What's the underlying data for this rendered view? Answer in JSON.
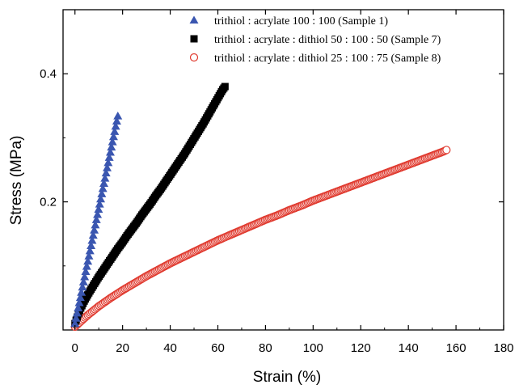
{
  "chart_data": {
    "type": "scatter",
    "title": "",
    "xlabel": "Strain (%)",
    "ylabel": "Stress (MPa)",
    "xlim": [
      -5,
      180
    ],
    "ylim": [
      0,
      0.5
    ],
    "x_ticks": [
      0,
      20,
      40,
      60,
      80,
      100,
      120,
      140,
      160,
      180
    ],
    "x_tick_labels": [
      "0",
      "20",
      "40",
      "60",
      "80",
      "100",
      "120",
      "140",
      "160",
      "180"
    ],
    "y_ticks": [
      0.2,
      0.4
    ],
    "y_tick_labels": [
      "0.2",
      "0.4"
    ],
    "grid": false,
    "legend_position": "top-right",
    "series": [
      {
        "name": "trithiol : acrylate 100 : 100 (Sample 1)",
        "marker": "triangle",
        "color": "#3a56b0",
        "x": [
          0,
          1,
          2,
          3,
          4,
          5,
          6,
          7,
          8,
          9,
          10,
          11,
          12,
          13,
          14,
          15,
          16,
          17,
          18
        ],
        "y": [
          0.01,
          0.028,
          0.046,
          0.064,
          0.082,
          0.1,
          0.118,
          0.136,
          0.154,
          0.172,
          0.19,
          0.208,
          0.226,
          0.244,
          0.262,
          0.28,
          0.298,
          0.316,
          0.334
        ]
      },
      {
        "name": "trithiol : acrylate : dithiol 50 : 100 : 50 (Sample 7)",
        "marker": "square",
        "color": "#000000",
        "x": [
          0,
          2,
          4,
          6,
          8,
          10,
          12,
          14,
          16,
          18,
          20,
          22,
          24,
          26,
          28,
          30,
          32,
          34,
          36,
          38,
          40,
          42,
          44,
          46,
          48,
          50,
          52,
          54,
          56,
          58,
          60,
          62,
          63
        ],
        "y": [
          0.01,
          0.031,
          0.046,
          0.059,
          0.071,
          0.083,
          0.094,
          0.105,
          0.116,
          0.127,
          0.137,
          0.148,
          0.158,
          0.168,
          0.179,
          0.189,
          0.199,
          0.21,
          0.22,
          0.231,
          0.242,
          0.253,
          0.264,
          0.275,
          0.287,
          0.299,
          0.311,
          0.323,
          0.336,
          0.349,
          0.362,
          0.375,
          0.38
        ]
      },
      {
        "name": "trithiol : acrylate : dithiol 25 : 100 : 75 (Sample 8)",
        "marker": "open-circle",
        "color": "#e03a2f",
        "x": [
          0,
          5,
          10,
          15,
          20,
          25,
          30,
          35,
          40,
          45,
          50,
          55,
          60,
          65,
          70,
          75,
          80,
          85,
          90,
          95,
          100,
          105,
          110,
          115,
          120,
          125,
          130,
          135,
          140,
          145,
          150,
          155,
          156
        ],
        "y": [
          0.005,
          0.022,
          0.037,
          0.05,
          0.062,
          0.073,
          0.084,
          0.094,
          0.104,
          0.113,
          0.122,
          0.131,
          0.14,
          0.148,
          0.156,
          0.164,
          0.172,
          0.179,
          0.187,
          0.194,
          0.202,
          0.209,
          0.216,
          0.223,
          0.23,
          0.237,
          0.244,
          0.251,
          0.258,
          0.265,
          0.272,
          0.279,
          0.281
        ]
      }
    ]
  }
}
